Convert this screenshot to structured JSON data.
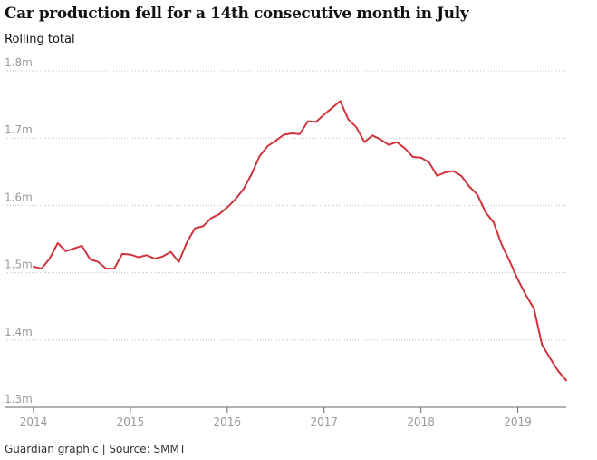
{
  "title": "Car production fell for a 14th consecutive month in July",
  "subtitle": "Rolling total",
  "footer": "Guardian graphic | Source: SMMT",
  "colors": {
    "line": "#d0333b",
    "grid": "#bdbdbd",
    "tick_text": "#999999"
  },
  "chart_data": {
    "type": "line",
    "title": "Car production fell for a 14th consecutive month in July",
    "ylabel": "Rolling total",
    "xlabel": "",
    "ylim": [
      1.3,
      1.8
    ],
    "yticks": [
      1.3,
      1.4,
      1.5,
      1.6,
      1.7,
      1.8
    ],
    "ytick_labels": [
      "1.3m",
      "1.4m",
      "1.5m",
      "1.6m",
      "1.7m",
      "1.8m"
    ],
    "xlim": [
      "2014-01",
      "2019-07"
    ],
    "xticks": [
      "2014",
      "2015",
      "2016",
      "2017",
      "2018",
      "2019"
    ],
    "grid": true,
    "x": [
      "2014-01",
      "2014-02",
      "2014-03",
      "2014-04",
      "2014-05",
      "2014-06",
      "2014-07",
      "2014-08",
      "2014-09",
      "2014-10",
      "2014-11",
      "2014-12",
      "2015-01",
      "2015-02",
      "2015-03",
      "2015-04",
      "2015-05",
      "2015-06",
      "2015-07",
      "2015-08",
      "2015-09",
      "2015-10",
      "2015-11",
      "2015-12",
      "2016-01",
      "2016-02",
      "2016-03",
      "2016-04",
      "2016-05",
      "2016-06",
      "2016-07",
      "2016-08",
      "2016-09",
      "2016-10",
      "2016-11",
      "2016-12",
      "2017-01",
      "2017-02",
      "2017-03",
      "2017-04",
      "2017-05",
      "2017-06",
      "2017-07",
      "2017-08",
      "2017-09",
      "2017-10",
      "2017-11",
      "2017-12",
      "2018-01",
      "2018-02",
      "2018-03",
      "2018-04",
      "2018-05",
      "2018-06",
      "2018-07",
      "2018-08",
      "2018-09",
      "2018-10",
      "2018-11",
      "2018-12",
      "2019-01",
      "2019-02",
      "2019-03",
      "2019-04",
      "2019-05",
      "2019-06",
      "2019-07"
    ],
    "series": [
      {
        "values": [
          1.509,
          1.506,
          1.521,
          1.544,
          1.532,
          1.536,
          1.54,
          1.52,
          1.516,
          1.506,
          1.506,
          1.528,
          1.527,
          1.523,
          1.526,
          1.521,
          1.524,
          1.531,
          1.516,
          1.545,
          1.566,
          1.569,
          1.581,
          1.587,
          1.597,
          1.609,
          1.624,
          1.646,
          1.673,
          1.688,
          1.696,
          1.705,
          1.707,
          1.706,
          1.725,
          1.724,
          1.735,
          1.745,
          1.755,
          1.728,
          1.716,
          1.694,
          1.704,
          1.698,
          1.69,
          1.694,
          1.685,
          1.672,
          1.671,
          1.664,
          1.644,
          1.649,
          1.651,
          1.644,
          1.628,
          1.616,
          1.59,
          1.575,
          1.542,
          1.517,
          1.49,
          1.467,
          1.447,
          1.393,
          1.373,
          1.354,
          1.34
        ]
      }
    ]
  }
}
